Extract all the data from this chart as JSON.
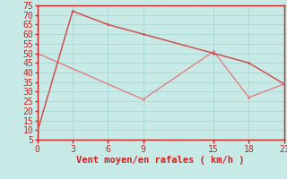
{
  "line1_x": [
    0,
    3,
    6,
    9,
    15,
    18,
    21
  ],
  "line1_y": [
    9,
    72,
    65,
    60,
    50,
    45,
    34
  ],
  "line2_x": [
    0,
    9,
    15,
    18,
    21
  ],
  "line2_y": [
    50,
    26,
    51,
    27,
    34
  ],
  "line1_color": "#d05050",
  "line2_color": "#e08080",
  "bg_color": "#c8eae6",
  "grid_color": "#a8d8d4",
  "axis_color": "#cc2222",
  "tick_color": "#cc2222",
  "xlabel": "Vent moyen/en rafales ( km/h )",
  "xlim": [
    0,
    21
  ],
  "ylim": [
    5,
    75
  ],
  "xticks": [
    0,
    3,
    6,
    9,
    15,
    18,
    21
  ],
  "yticks": [
    5,
    10,
    15,
    20,
    25,
    30,
    35,
    40,
    45,
    50,
    55,
    60,
    65,
    70,
    75
  ],
  "xlabel_fontsize": 7.5,
  "tick_fontsize": 7
}
